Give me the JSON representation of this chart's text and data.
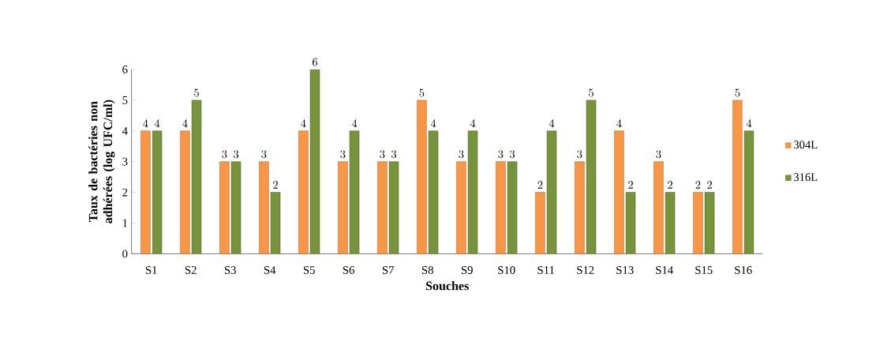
{
  "chart_data": {
    "type": "bar",
    "xlabel": "Souches",
    "ylabel": "Taux de bactéries non adhérées (log UFC/ml)",
    "categories": [
      "S1",
      "S2",
      "S3",
      "S4",
      "S5",
      "S6",
      "S7",
      "S8",
      "S9",
      "S10",
      "S11",
      "S12",
      "S13",
      "S14",
      "S15",
      "S16"
    ],
    "series": [
      {
        "name": "304L",
        "color": "#f79646",
        "values": [
          4,
          4,
          3,
          3,
          4,
          3,
          3,
          5,
          3,
          3,
          2,
          3,
          4,
          3,
          2,
          5
        ]
      },
      {
        "name": "316L",
        "color": "#77933c",
        "values": [
          4,
          5,
          3,
          2,
          6,
          4,
          3,
          4,
          4,
          3,
          4,
          5,
          2,
          2,
          2,
          4
        ]
      }
    ],
    "ylim": [
      0,
      6
    ],
    "yticks": [
      0,
      1,
      2,
      3,
      4,
      5,
      6
    ],
    "data_labels": true,
    "legend": "right",
    "grid": false
  }
}
